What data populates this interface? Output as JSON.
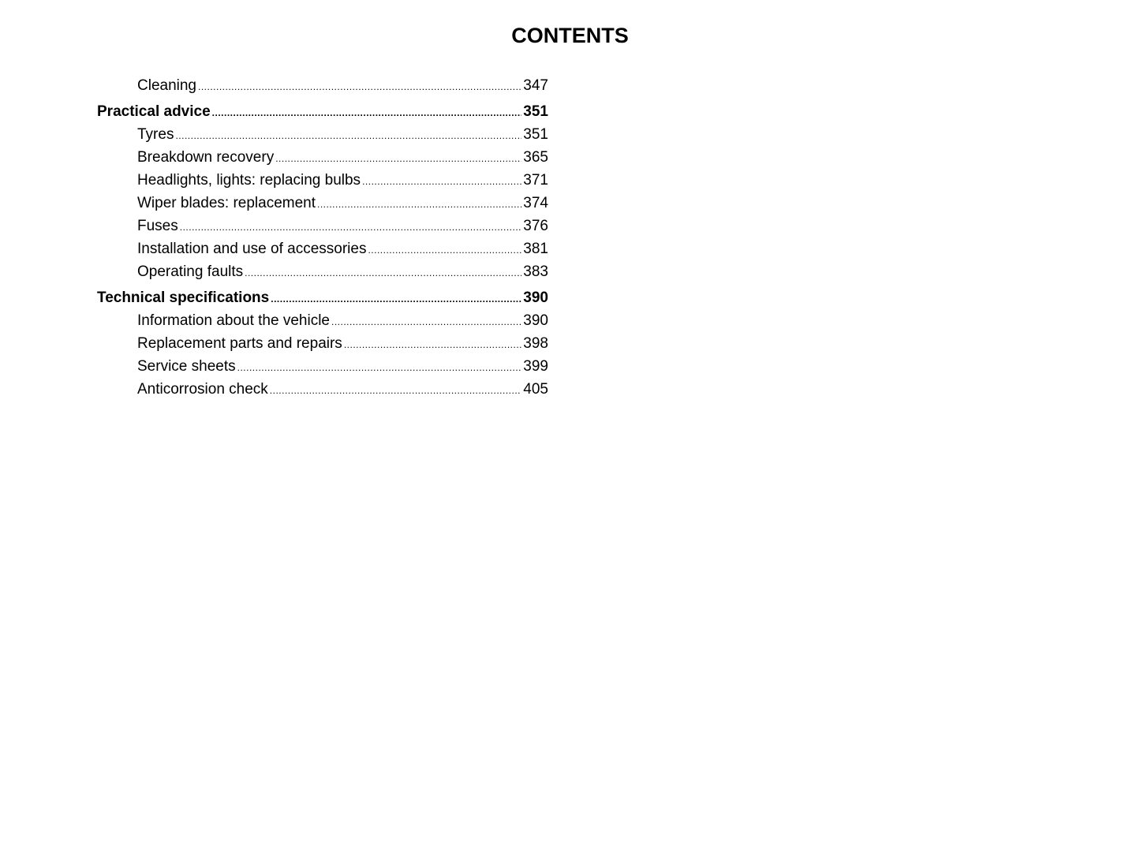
{
  "title": "CONTENTS",
  "entries": [
    {
      "label": "Cleaning",
      "page": "347",
      "level": "sub"
    },
    {
      "label": "Practical advice",
      "page": "351",
      "level": "head"
    },
    {
      "label": "Tyres",
      "page": "351",
      "level": "sub"
    },
    {
      "label": "Breakdown recovery",
      "page": "365",
      "level": "sub"
    },
    {
      "label": "Headlights, lights: replacing bulbs",
      "page": "371",
      "level": "sub"
    },
    {
      "label": "Wiper blades: replacement",
      "page": "374",
      "level": "sub"
    },
    {
      "label": "Fuses",
      "page": "376",
      "level": "sub"
    },
    {
      "label": "Installation and use of accessories",
      "page": "381",
      "level": "sub"
    },
    {
      "label": "Operating faults",
      "page": "383",
      "level": "sub"
    },
    {
      "label": "Technical specifications",
      "page": "390",
      "level": "head"
    },
    {
      "label": "Information about the vehicle",
      "page": "390",
      "level": "sub"
    },
    {
      "label": "Replacement parts and repairs",
      "page": "398",
      "level": "sub"
    },
    {
      "label": "Service sheets",
      "page": "399",
      "level": "sub"
    },
    {
      "label": "Anticorrosion check",
      "page": "405",
      "level": "sub"
    }
  ]
}
